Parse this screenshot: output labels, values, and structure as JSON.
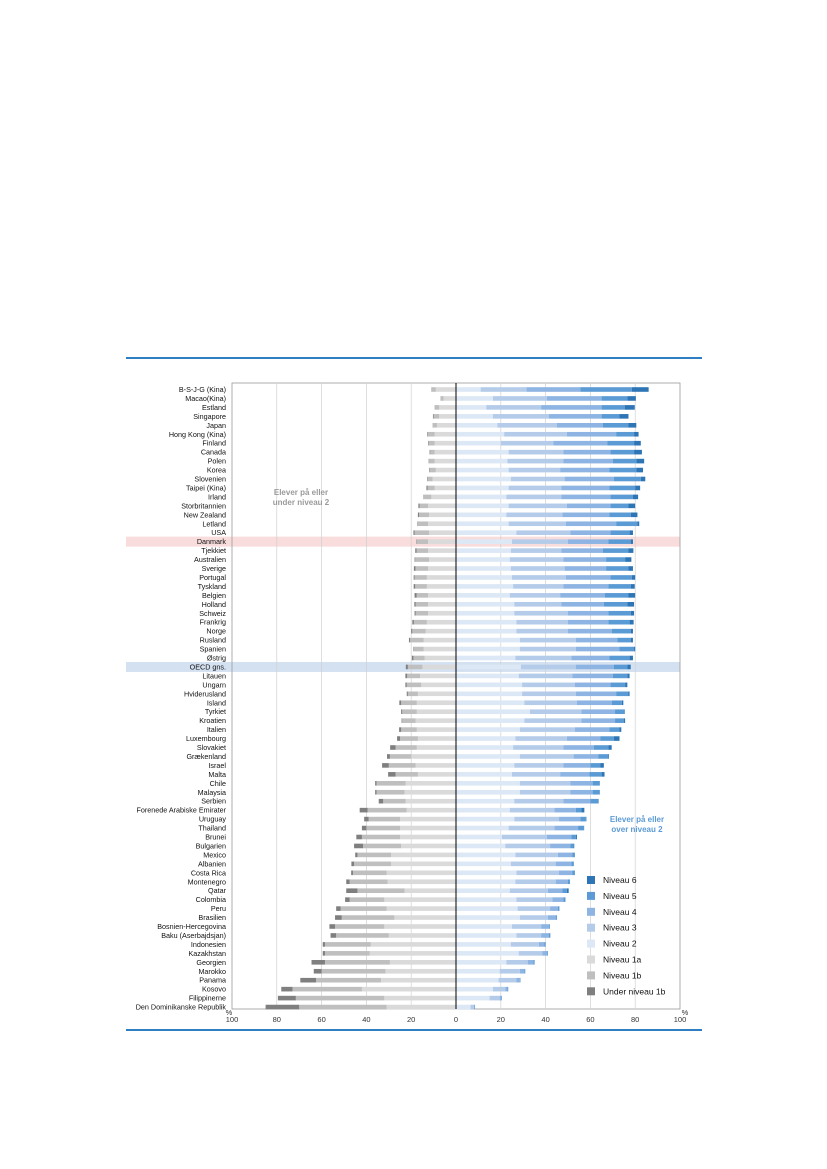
{
  "chart_data": {
    "type": "bar",
    "orientation": "horizontal-diverging",
    "annotations": {
      "left": [
        "Elever på eller",
        "under niveau 2"
      ],
      "right": [
        "Elever på eller",
        "over niveau 2"
      ]
    },
    "x_axis": {
      "ticks": [
        "100",
        "80",
        "60",
        "40",
        "20",
        "0",
        "20",
        "40",
        "60",
        "80",
        "100"
      ],
      "tick_values": [
        -100,
        -80,
        -60,
        -40,
        -20,
        0,
        20,
        40,
        60,
        80,
        100
      ],
      "unit_left": "%",
      "unit_right": "%",
      "xlim": [
        -100,
        100
      ]
    },
    "legend_position": "bottom-right",
    "levels": [
      {
        "name": "Niveau 6",
        "color": "#2e75b6"
      },
      {
        "name": "Niveau 5",
        "color": "#5b9bd5"
      },
      {
        "name": "Niveau 4",
        "color": "#8db4e2"
      },
      {
        "name": "Niveau 3",
        "color": "#b4cce9"
      },
      {
        "name": "Niveau 2",
        "color": "#dce8f5"
      },
      {
        "name": "Niveau 1a",
        "color": "#dadada"
      },
      {
        "name": "Niveau 1b",
        "color": "#bfbfbf"
      },
      {
        "name": "Under niveau 1b",
        "color": "#7f7f7f"
      }
    ],
    "highlight_colors": {
      "Danmark": "#f9dcdc",
      "OECD gns.": "#d4e1f1"
    },
    "categories": [
      "B-S-J-G (Kina)",
      "Macao(Kina)",
      "Estland",
      "Singapore",
      "Japan",
      "Hong Kong (Kina)",
      "Finland",
      "Canada",
      "Polen",
      "Korea",
      "Slovenien",
      "Taipei (Kina)",
      "Irland",
      "Storbritannien",
      "New Zealand",
      "Letland",
      "USA",
      "Danmark",
      "Tjekkiet",
      "Australien",
      "Sverige",
      "Portugal",
      "Tyskland",
      "Belgien",
      "Holland",
      "Schweiz",
      "Frankrig",
      "Norge",
      "Rusland",
      "Spanien",
      "Østrig",
      "OECD gns.",
      "Litauen",
      "Ungarn",
      "Hviderusland",
      "Island",
      "Tyrkiet",
      "Kroatien",
      "Italien",
      "Luxembourg",
      "Slovakiet",
      "Grækenland",
      "Israel",
      "Malta",
      "Chile",
      "Malaysia",
      "Serbien",
      "Forenede Arabiske Emirater",
      "Uruguay",
      "Thailand",
      "Brunei",
      "Bulgarien",
      "Mexico",
      "Albanien",
      "Costa Rica",
      "Montenegro",
      "Qatar",
      "Colombia",
      "Peru",
      "Brasilien",
      "Bosnien-Hercegovina",
      "Baku (Aserbajdsjan)",
      "Indonesien",
      "Kazakhstan",
      "Georgien",
      "Marokko",
      "Panama",
      "Kosovo",
      "Filippinerne",
      "Den Dominikanske Republik"
    ],
    "series": [
      {
        "name": "Niveau 6",
        "values": [
          7.5,
          3.8,
          4.5,
          4.0,
          3.5,
          2.0,
          3.0,
          3.5,
          3.5,
          3.0,
          2.0,
          2.2,
          2.3,
          3.0,
          3.0,
          0.8,
          1.5,
          1.0,
          2.2,
          2.8,
          2.0,
          1.5,
          1.8,
          3.0,
          3.0,
          1.5,
          1.8,
          1.0,
          1.0,
          0.5,
          1.5,
          1.5,
          1.0,
          1.0,
          0.5,
          0.7,
          0.3,
          0.5,
          0.8,
          2.5,
          1.5,
          0.3,
          1.5,
          1.3,
          0.2,
          0.2,
          0.2,
          1.3,
          0.2,
          0.2,
          0.5,
          0.3,
          0.1,
          0.1,
          0.1,
          0.1,
          0.8,
          0.1,
          0.1,
          0.1,
          0.1,
          0.1,
          0.1,
          0.1,
          0.1,
          0.1,
          0.1,
          0.1,
          0.1,
          0.1
        ]
      },
      {
        "name": "Niveau 5",
        "values": [
          23.0,
          11.5,
          10.3,
          8.0,
          11.5,
          8.0,
          12.0,
          10.5,
          10.5,
          12.0,
          12.0,
          11.5,
          10.0,
          8.0,
          9.5,
          9.5,
          8.5,
          10.0,
          11.5,
          8.5,
          10.0,
          9.5,
          10.0,
          10.5,
          10.5,
          10.0,
          9.5,
          8.5,
          6.0,
          6.5,
          9.0,
          6.0,
          6.5,
          6.5,
          5.5,
          4.5,
          4.0,
          4.0,
          4.5,
          6.0,
          6.5,
          4.5,
          4.5,
          5.5,
          3.0,
          3.0,
          3.5,
          2.5,
          2.5,
          2.5,
          2.0,
          1.5,
          1.0,
          1.0,
          1.0,
          0.8,
          2.0,
          0.8,
          0.6,
          0.5,
          0.3,
          0.5,
          0.4,
          0.4,
          0.5,
          0.3,
          0.2,
          0.2,
          0.2,
          0.1
        ]
      },
      {
        "name": "Niveau 4",
        "values": [
          24.0,
          24.5,
          27.0,
          23.5,
          20.5,
          22.0,
          24.0,
          21.0,
          22.0,
          22.0,
          22.0,
          21.5,
          22.0,
          19.5,
          21.0,
          22.5,
          18.0,
          18.0,
          18.5,
          19.0,
          18.5,
          20.0,
          20.0,
          20.0,
          19.0,
          18.0,
          18.0,
          19.5,
          18.5,
          19.5,
          17.0,
          17.0,
          18.0,
          16.0,
          18.0,
          15.5,
          15.0,
          15.0,
          15.5,
          15.0,
          13.5,
          11.0,
          12.0,
          13.0,
          10.0,
          10.0,
          12.0,
          9.5,
          9.5,
          10.5,
          11.0,
          9.0,
          6.5,
          7.0,
          6.0,
          5.5,
          6.5,
          5.0,
          3.5,
          3.5,
          3.5,
          3.5,
          2.5,
          2.0,
          2.5,
          2.0,
          1.5,
          1.0,
          0.7,
          0.3
        ]
      },
      {
        "name": "Niveau 3",
        "values": [
          20.5,
          24.0,
          24.5,
          25.0,
          26.5,
          28.0,
          23.5,
          24.5,
          25.0,
          23.0,
          24.0,
          23.5,
          24.5,
          26.0,
          25.0,
          25.5,
          24.0,
          25.0,
          22.5,
          24.0,
          24.0,
          24.0,
          22.5,
          22.5,
          21.0,
          24.0,
          23.0,
          23.0,
          25.0,
          25.0,
          25.0,
          24.5,
          24.0,
          23.5,
          24.0,
          23.5,
          23.0,
          25.5,
          24.5,
          23.0,
          22.5,
          24.0,
          22.0,
          21.5,
          22.5,
          22.5,
          22.0,
          20.0,
          20.0,
          20.5,
          20.0,
          20.0,
          19.0,
          20.0,
          19.0,
          18.0,
          17.0,
          16.0,
          14.5,
          12.5,
          13.0,
          11.0,
          12.5,
          10.5,
          9.5,
          9.0,
          8.0,
          5.5,
          4.5,
          1.5
        ]
      },
      {
        "name": "Niveau 2",
        "values": [
          11.0,
          16.5,
          13.5,
          16.5,
          18.5,
          21.5,
          20.0,
          23.5,
          23.0,
          23.5,
          24.5,
          23.5,
          22.5,
          23.5,
          22.5,
          23.5,
          27.0,
          25.0,
          24.5,
          24.0,
          24.5,
          25.0,
          25.5,
          24.0,
          26.0,
          26.0,
          27.0,
          27.0,
          28.5,
          28.5,
          26.5,
          29.0,
          28.0,
          29.5,
          29.5,
          30.5,
          33.0,
          30.5,
          28.5,
          26.5,
          25.5,
          28.5,
          26.0,
          25.0,
          28.5,
          28.5,
          26.0,
          24.0,
          26.0,
          23.5,
          20.5,
          22.0,
          26.5,
          24.5,
          27.0,
          26.5,
          24.0,
          27.0,
          27.5,
          28.5,
          25.0,
          27.0,
          24.5,
          28.0,
          22.5,
          19.5,
          19.0,
          16.5,
          15.0,
          6.5
        ]
      },
      {
        "name": "Niveau 1a",
        "values": [
          9.0,
          5.5,
          7.5,
          7.5,
          8.5,
          9.5,
          9.5,
          9.5,
          9.5,
          9.0,
          10.5,
          9.5,
          11.0,
          12.5,
          12.0,
          12.5,
          12.0,
          12.5,
          12.5,
          12.0,
          12.5,
          13.0,
          13.0,
          12.5,
          12.5,
          12.5,
          13.0,
          13.5,
          14.5,
          14.5,
          14.0,
          15.0,
          16.0,
          15.5,
          17.0,
          17.5,
          17.5,
          18.0,
          17.5,
          17.0,
          17.5,
          20.0,
          18.0,
          17.0,
          22.5,
          23.0,
          22.5,
          22.0,
          25.0,
          25.0,
          25.0,
          24.5,
          29.0,
          29.0,
          31.0,
          30.5,
          23.0,
          32.0,
          31.0,
          27.5,
          32.0,
          30.0,
          38.0,
          38.5,
          29.5,
          31.5,
          33.5,
          42.0,
          32.0,
          31.0
        ]
      },
      {
        "name": "Niveau 1b",
        "values": [
          1.9,
          1.3,
          1.9,
          2.5,
          1.8,
          3.0,
          2.8,
          2.0,
          2.5,
          2.6,
          2.2,
          3.2,
          3.5,
          3.8,
          4.5,
          4.6,
          6.5,
          5.0,
          5.1,
          6.2,
          5.6,
          5.5,
          5.2,
          5.1,
          5.5,
          5.5,
          5.8,
          6.0,
          6.0,
          4.4,
          5.0,
          6.5,
          5.8,
          6.5,
          4.5,
          7.0,
          6.5,
          6.0,
          7.0,
          8.0,
          9.5,
          9.5,
          12.0,
          10.0,
          13.0,
          12.5,
          10.0,
          17.5,
          14.0,
          15.0,
          17.0,
          17.0,
          15.0,
          16.5,
          15.0,
          17.0,
          21.0,
          15.5,
          20.5,
          23.5,
          22.0,
          23.5,
          20.5,
          20.0,
          29.0,
          28.5,
          29.0,
          31.0,
          39.5,
          39.0
        ]
      },
      {
        "name": "Under niveau 1b",
        "values": [
          0.1,
          0.1,
          0.1,
          0.3,
          0.1,
          0.3,
          0.2,
          0.3,
          0.2,
          0.3,
          0.2,
          0.5,
          0.1,
          0.5,
          0.5,
          0.2,
          0.5,
          0.2,
          0.6,
          0.3,
          0.7,
          0.4,
          0.7,
          0.9,
          0.6,
          0.5,
          0.7,
          0.5,
          0.5,
          0.2,
          0.7,
          0.9,
          0.8,
          0.6,
          0.5,
          0.8,
          0.5,
          0.3,
          0.9,
          1.3,
          2.4,
          1.3,
          3.0,
          3.3,
          0.6,
          0.6,
          2.0,
          3.5,
          2.0,
          2.0,
          2.5,
          4.0,
          1.0,
          1.2,
          0.8,
          1.5,
          5.0,
          2.0,
          2.0,
          3.0,
          2.5,
          2.5,
          1.0,
          1.0,
          6.0,
          3.5,
          7.0,
          5.0,
          8.0,
          15.0
        ]
      }
    ]
  }
}
